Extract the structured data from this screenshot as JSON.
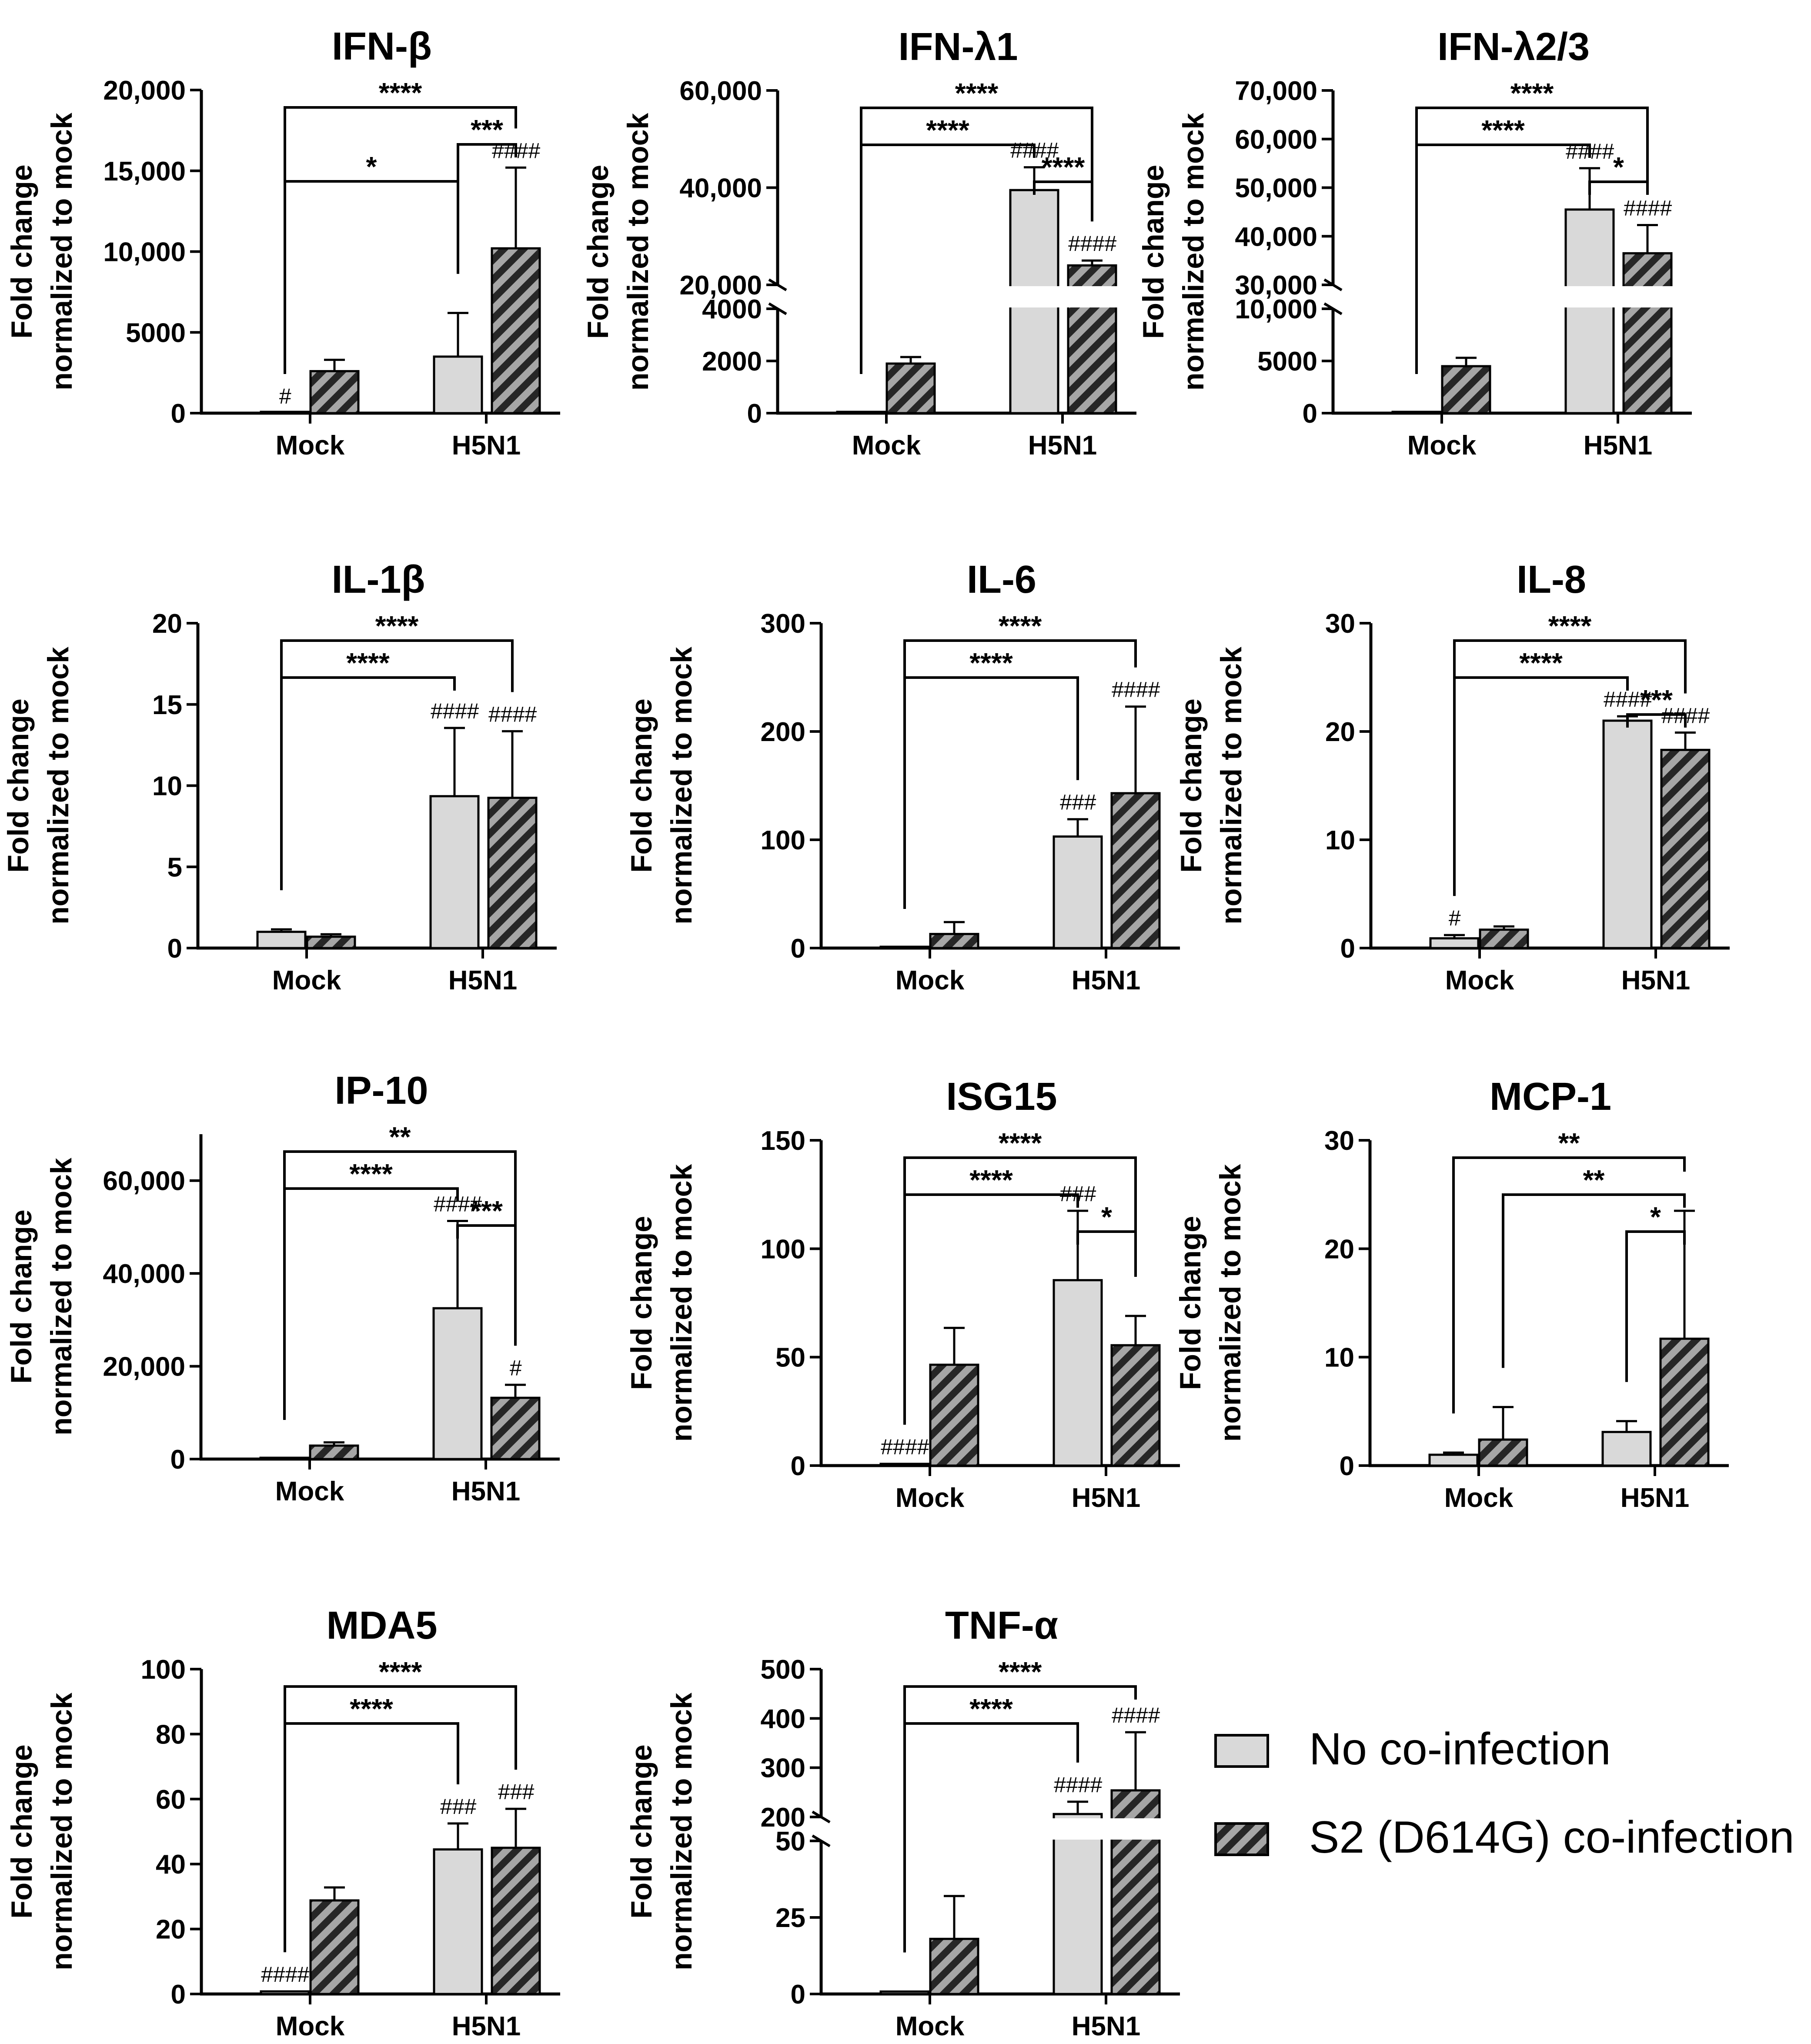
{
  "figure": {
    "ylabel_line1": "Fold change",
    "ylabel_line2": "normalized to mock",
    "legend": [
      {
        "label": "No co-infection",
        "pattern": "solid",
        "color": "#d9d9d9"
      },
      {
        "label": "S2 (D614G) co-infection",
        "pattern": "hatched",
        "color": "#a6a6a6"
      }
    ]
  },
  "chart_data": [
    {
      "type": "bar",
      "title": "IFN-β",
      "categories": [
        "Mock",
        "H5N1"
      ],
      "ylim": [
        0,
        20000
      ],
      "yticks": [
        {
          "v": 0,
          "label": "0"
        },
        {
          "v": 5000,
          "label": "5000"
        },
        {
          "v": 10000,
          "label": "10,000"
        },
        {
          "v": 15000,
          "label": "15,000"
        },
        {
          "v": 20000,
          "label": "20,000"
        }
      ],
      "series": [
        {
          "name": "No co-infection",
          "values": [
            0,
            3500
          ],
          "errors": [
            0,
            2700
          ],
          "marks": [
            "#",
            ""
          ]
        },
        {
          "name": "S2 (D614G) co-infection",
          "values": [
            2600,
            10200
          ],
          "errors": [
            700,
            5000
          ],
          "marks": [
            "",
            "####"
          ]
        }
      ],
      "brackets": [
        {
          "from": [
            0,
            0
          ],
          "to": [
            1,
            1
          ],
          "label": "****"
        },
        {
          "from": [
            1,
            0
          ],
          "to": [
            1,
            1
          ],
          "label": "***"
        },
        {
          "from": [
            0,
            0
          ],
          "to": [
            1,
            0
          ],
          "label": "*"
        }
      ]
    },
    {
      "type": "bar",
      "title": "IFN-λ1",
      "categories": [
        "Mock",
        "H5N1"
      ],
      "yaxis_break": {
        "lower": [
          0,
          4000
        ],
        "upper": [
          20000,
          60000
        ]
      },
      "yticks": [
        {
          "v": 0,
          "label": "0"
        },
        {
          "v": 2000,
          "label": "2000"
        },
        {
          "v": 4000,
          "label": "4000"
        },
        {
          "v": 20000,
          "label": "20,000"
        },
        {
          "v": 40000,
          "label": "40,000"
        },
        {
          "v": 60000,
          "label": "60,000"
        }
      ],
      "series": [
        {
          "name": "No co-infection",
          "values": [
            0,
            39500
          ],
          "errors": [
            0,
            4700
          ],
          "marks": [
            "",
            "####"
          ]
        },
        {
          "name": "S2 (D614G) co-infection",
          "values": [
            1900,
            24000
          ],
          "errors": [
            250,
            1000
          ],
          "marks": [
            "",
            "####"
          ]
        }
      ],
      "brackets": [
        {
          "from": [
            0,
            0
          ],
          "to": [
            1,
            1
          ],
          "label": "****"
        },
        {
          "from": [
            0,
            0
          ],
          "to": [
            1,
            0
          ],
          "label": "****"
        },
        {
          "from": [
            1,
            0
          ],
          "to": [
            1,
            1
          ],
          "label": "****"
        }
      ]
    },
    {
      "type": "bar",
      "title": "IFN-λ2/3",
      "categories": [
        "Mock",
        "H5N1"
      ],
      "yaxis_break": {
        "lower": [
          0,
          10000
        ],
        "upper": [
          30000,
          70000
        ]
      },
      "yticks": [
        {
          "v": 0,
          "label": "0"
        },
        {
          "v": 5000,
          "label": "5000"
        },
        {
          "v": 10000,
          "label": "10,000"
        },
        {
          "v": 30000,
          "label": "30,000"
        },
        {
          "v": 40000,
          "label": "40,000"
        },
        {
          "v": 50000,
          "label": "50,000"
        },
        {
          "v": 60000,
          "label": "60,000"
        },
        {
          "v": 70000,
          "label": "70,000"
        }
      ],
      "series": [
        {
          "name": "No co-infection",
          "values": [
            0,
            45500
          ],
          "errors": [
            0,
            8500
          ],
          "marks": [
            "",
            "####"
          ]
        },
        {
          "name": "S2 (D614G) co-infection",
          "values": [
            4500,
            36500
          ],
          "errors": [
            800,
            5800
          ],
          "marks": [
            "",
            "####"
          ]
        }
      ],
      "brackets": [
        {
          "from": [
            0,
            0
          ],
          "to": [
            1,
            1
          ],
          "label": "****"
        },
        {
          "from": [
            0,
            0
          ],
          "to": [
            1,
            0
          ],
          "label": "****"
        },
        {
          "from": [
            1,
            0
          ],
          "to": [
            1,
            1
          ],
          "label": "*"
        }
      ]
    },
    {
      "type": "bar",
      "title": "IL-1β",
      "categories": [
        "Mock",
        "H5N1"
      ],
      "ylim": [
        0,
        20
      ],
      "yticks": [
        {
          "v": 0,
          "label": "0"
        },
        {
          "v": 5,
          "label": "5"
        },
        {
          "v": 10,
          "label": "10"
        },
        {
          "v": 15,
          "label": "15"
        },
        {
          "v": 20,
          "label": "20"
        }
      ],
      "series": [
        {
          "name": "No co-infection",
          "values": [
            1.0,
            9.35
          ],
          "errors": [
            0.15,
            4.2
          ],
          "marks": [
            "",
            "####"
          ]
        },
        {
          "name": "S2 (D614G) co-infection",
          "values": [
            0.7,
            9.25
          ],
          "errors": [
            0.15,
            4.1
          ],
          "marks": [
            "",
            "####"
          ]
        }
      ],
      "brackets": [
        {
          "from": [
            0,
            0
          ],
          "to": [
            1,
            1
          ],
          "label": "****"
        },
        {
          "from": [
            0,
            0
          ],
          "to": [
            1,
            0
          ],
          "label": "****"
        }
      ]
    },
    {
      "type": "bar",
      "title": "IL-6",
      "categories": [
        "Mock",
        "H5N1"
      ],
      "ylim": [
        0,
        300
      ],
      "yticks": [
        {
          "v": 0,
          "label": "0"
        },
        {
          "v": 100,
          "label": "100"
        },
        {
          "v": 200,
          "label": "200"
        },
        {
          "v": 300,
          "label": "300"
        }
      ],
      "series": [
        {
          "name": "No co-infection",
          "values": [
            0,
            103
          ],
          "errors": [
            0,
            16
          ],
          "marks": [
            "",
            "###"
          ]
        },
        {
          "name": "S2 (D614G) co-infection",
          "values": [
            13,
            143
          ],
          "errors": [
            11,
            80
          ],
          "marks": [
            "",
            "####"
          ]
        }
      ],
      "brackets": [
        {
          "from": [
            0,
            0
          ],
          "to": [
            1,
            1
          ],
          "label": "****"
        },
        {
          "from": [
            0,
            0
          ],
          "to": [
            1,
            0
          ],
          "label": "****"
        }
      ]
    },
    {
      "type": "bar",
      "title": "IL-8",
      "categories": [
        "Mock",
        "H5N1"
      ],
      "ylim": [
        0,
        30
      ],
      "yticks": [
        {
          "v": 0,
          "label": "0"
        },
        {
          "v": 10,
          "label": "10"
        },
        {
          "v": 20,
          "label": "20"
        },
        {
          "v": 30,
          "label": "30"
        }
      ],
      "series": [
        {
          "name": "No co-infection",
          "values": [
            0.9,
            21.0
          ],
          "errors": [
            0.3,
            0.4
          ],
          "marks": [
            "#",
            "####"
          ]
        },
        {
          "name": "S2 (D614G) co-infection",
          "values": [
            1.7,
            18.3
          ],
          "errors": [
            0.3,
            1.6
          ],
          "marks": [
            "",
            "####"
          ]
        }
      ],
      "brackets": [
        {
          "from": [
            0,
            0
          ],
          "to": [
            1,
            1
          ],
          "label": "****"
        },
        {
          "from": [
            0,
            0
          ],
          "to": [
            1,
            0
          ],
          "label": "****"
        },
        {
          "from": [
            1,
            0
          ],
          "to": [
            1,
            1
          ],
          "label": "***"
        }
      ]
    },
    {
      "type": "bar",
      "title": "IP-10",
      "categories": [
        "Mock",
        "H5N1"
      ],
      "ylim": [
        0,
        70000
      ],
      "yticks": [
        {
          "v": 0,
          "label": "0"
        },
        {
          "v": 20000,
          "label": "20,000"
        },
        {
          "v": 40000,
          "label": "40,000"
        },
        {
          "v": 60000,
          "label": "60,000"
        }
      ],
      "series": [
        {
          "name": "No co-infection",
          "values": [
            0,
            32500
          ],
          "errors": [
            0,
            18800
          ],
          "marks": [
            "",
            "####"
          ]
        },
        {
          "name": "S2 (D614G) co-infection",
          "values": [
            2900,
            13200
          ],
          "errors": [
            700,
            2800
          ],
          "marks": [
            "",
            "#"
          ]
        }
      ],
      "brackets": [
        {
          "from": [
            0,
            0
          ],
          "to": [
            1,
            1
          ],
          "label": "**"
        },
        {
          "from": [
            0,
            0
          ],
          "to": [
            1,
            0
          ],
          "label": "****"
        },
        {
          "from": [
            1,
            0
          ],
          "to": [
            1,
            1
          ],
          "label": "***"
        }
      ]
    },
    {
      "type": "bar",
      "title": "ISG15",
      "categories": [
        "Mock",
        "H5N1"
      ],
      "ylim": [
        0,
        150
      ],
      "yticks": [
        {
          "v": 0,
          "label": "0"
        },
        {
          "v": 50,
          "label": "50"
        },
        {
          "v": 100,
          "label": "100"
        },
        {
          "v": 150,
          "label": "150"
        }
      ],
      "series": [
        {
          "name": "No co-infection",
          "values": [
            0.8,
            85.5
          ],
          "errors": [
            0,
            32
          ],
          "marks": [
            "####",
            "###"
          ]
        },
        {
          "name": "S2 (D614G) co-infection",
          "values": [
            46.5,
            55.5
          ],
          "errors": [
            17,
            13.5
          ],
          "marks": [
            "",
            ""
          ]
        }
      ],
      "brackets": [
        {
          "from": [
            0,
            0
          ],
          "to": [
            1,
            1
          ],
          "label": "****"
        },
        {
          "from": [
            0,
            0
          ],
          "to": [
            1,
            0
          ],
          "label": "****"
        },
        {
          "from": [
            1,
            0
          ],
          "to": [
            1,
            1
          ],
          "label": "*"
        }
      ]
    },
    {
      "type": "bar",
      "title": "MCP-1",
      "categories": [
        "Mock",
        "H5N1"
      ],
      "ylim": [
        0,
        30
      ],
      "yticks": [
        {
          "v": 0,
          "label": "0"
        },
        {
          "v": 10,
          "label": "10"
        },
        {
          "v": 20,
          "label": "20"
        },
        {
          "v": 30,
          "label": "30"
        }
      ],
      "series": [
        {
          "name": "No co-infection",
          "values": [
            1.0,
            3.1
          ],
          "errors": [
            0.2,
            1.0
          ],
          "marks": [
            "",
            ""
          ]
        },
        {
          "name": "S2 (D614G) co-infection",
          "values": [
            2.4,
            11.7
          ],
          "errors": [
            3.0,
            11.8
          ],
          "marks": [
            "",
            ""
          ]
        }
      ],
      "brackets": [
        {
          "from": [
            0,
            0
          ],
          "to": [
            1,
            1
          ],
          "label": "**"
        },
        {
          "from": [
            0,
            1
          ],
          "to": [
            1,
            1
          ],
          "label": "**"
        },
        {
          "from": [
            1,
            0
          ],
          "to": [
            1,
            1
          ],
          "label": "*"
        }
      ]
    },
    {
      "type": "bar",
      "title": "MDA5",
      "categories": [
        "Mock",
        "H5N1"
      ],
      "ylim": [
        0,
        100
      ],
      "yticks": [
        {
          "v": 0,
          "label": "0"
        },
        {
          "v": 20,
          "label": "20"
        },
        {
          "v": 40,
          "label": "40"
        },
        {
          "v": 60,
          "label": "60"
        },
        {
          "v": 80,
          "label": "80"
        },
        {
          "v": 100,
          "label": "100"
        }
      ],
      "series": [
        {
          "name": "No co-infection",
          "values": [
            0.8,
            44.5
          ],
          "errors": [
            0,
            8
          ],
          "marks": [
            "####",
            "###"
          ]
        },
        {
          "name": "S2 (D614G) co-infection",
          "values": [
            28.8,
            45.0
          ],
          "errors": [
            4,
            12
          ],
          "marks": [
            "",
            "###"
          ]
        }
      ],
      "brackets": [
        {
          "from": [
            0,
            0
          ],
          "to": [
            1,
            1
          ],
          "label": "****"
        },
        {
          "from": [
            0,
            0
          ],
          "to": [
            1,
            0
          ],
          "label": "****"
        }
      ]
    },
    {
      "type": "bar",
      "title": "TNF-α",
      "categories": [
        "Mock",
        "H5N1"
      ],
      "yaxis_break": {
        "lower": [
          0,
          50
        ],
        "upper": [
          200,
          500
        ]
      },
      "yticks": [
        {
          "v": 0,
          "label": "0"
        },
        {
          "v": 25,
          "label": "25"
        },
        {
          "v": 50,
          "label": "50"
        },
        {
          "v": 200,
          "label": "200"
        },
        {
          "v": 300,
          "label": "300"
        },
        {
          "v": 400,
          "label": "400"
        },
        {
          "v": 500,
          "label": "500"
        }
      ],
      "series": [
        {
          "name": "No co-infection",
          "values": [
            0.8,
            206
          ],
          "errors": [
            0,
            25
          ],
          "marks": [
            "",
            "####"
          ]
        },
        {
          "name": "S2 (D614G) co-infection",
          "values": [
            18,
            254
          ],
          "errors": [
            14,
            118
          ],
          "marks": [
            "",
            "####"
          ]
        }
      ],
      "brackets": [
        {
          "from": [
            0,
            0
          ],
          "to": [
            1,
            1
          ],
          "label": "****"
        },
        {
          "from": [
            0,
            0
          ],
          "to": [
            1,
            0
          ],
          "label": "****"
        }
      ]
    }
  ]
}
